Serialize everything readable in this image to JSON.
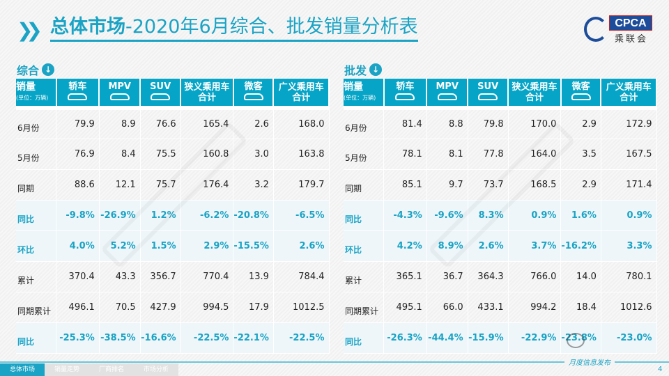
{
  "header": {
    "title_bold": "总体市场",
    "title_rest": "-2020年6月综合、批发销量分析表",
    "logo_text": "CPCA",
    "logo_cn": "乘联会"
  },
  "columns": {
    "label": "销量",
    "unit": "(单位：万辆)",
    "items": [
      "轿车",
      "MPV",
      "SUV",
      "狭义乘用车合计",
      "微客",
      "广义乘用车合计"
    ],
    "icons": [
      "car-icon",
      "mpv-icon",
      "suv-icon",
      null,
      "van-icon",
      null
    ]
  },
  "left": {
    "title": "综合",
    "rows": [
      {
        "label": "6月份",
        "values": [
          "79.9",
          "8.9",
          "76.6",
          "165.4",
          "2.6",
          "168.0"
        ],
        "pct": false
      },
      {
        "label": "5月份",
        "values": [
          "76.9",
          "8.4",
          "75.5",
          "160.8",
          "3.0",
          "163.8"
        ],
        "pct": false
      },
      {
        "label": "同期",
        "values": [
          "88.6",
          "12.1",
          "75.7",
          "176.4",
          "3.2",
          "179.7"
        ],
        "pct": false
      },
      {
        "label": "同比",
        "values": [
          "-9.8%",
          "-26.9%",
          "1.2%",
          "-6.2%",
          "-20.8%",
          "-6.5%"
        ],
        "pct": true
      },
      {
        "label": "环比",
        "values": [
          "4.0%",
          "5.2%",
          "1.5%",
          "2.9%",
          "-15.5%",
          "2.6%"
        ],
        "pct": true
      },
      {
        "label": "累计",
        "values": [
          "370.4",
          "43.3",
          "356.7",
          "770.4",
          "13.9",
          "784.4"
        ],
        "pct": false
      },
      {
        "label": "同期累计",
        "values": [
          "496.1",
          "70.5",
          "427.9",
          "994.5",
          "17.9",
          "1012.5"
        ],
        "pct": false
      },
      {
        "label": "同比",
        "values": [
          "-25.3%",
          "-38.5%",
          "-16.6%",
          "-22.5%",
          "-22.1%",
          "-22.5%"
        ],
        "pct": true
      }
    ]
  },
  "right": {
    "title": "批发",
    "rows": [
      {
        "label": "6月份",
        "values": [
          "81.4",
          "8.8",
          "79.8",
          "170.0",
          "2.9",
          "172.9"
        ],
        "pct": false
      },
      {
        "label": "5月份",
        "values": [
          "78.1",
          "8.1",
          "77.8",
          "164.0",
          "3.5",
          "167.5"
        ],
        "pct": false
      },
      {
        "label": "同期",
        "values": [
          "85.1",
          "9.7",
          "73.7",
          "168.5",
          "2.9",
          "171.4"
        ],
        "pct": false
      },
      {
        "label": "同比",
        "values": [
          "-4.3%",
          "-9.6%",
          "8.3%",
          "0.9%",
          "1.6%",
          "0.9%"
        ],
        "pct": true
      },
      {
        "label": "环比",
        "values": [
          "4.2%",
          "8.9%",
          "2.6%",
          "3.7%",
          "-16.2%",
          "3.3%"
        ],
        "pct": true
      },
      {
        "label": "累计",
        "values": [
          "365.1",
          "36.7",
          "364.3",
          "766.0",
          "14.0",
          "780.1"
        ],
        "pct": false
      },
      {
        "label": "同期累计",
        "values": [
          "495.1",
          "66.0",
          "433.1",
          "994.2",
          "18.4",
          "1012.6"
        ],
        "pct": false
      },
      {
        "label": "同比",
        "values": [
          "-26.3%",
          "-44.4%",
          "-15.9%",
          "-22.9%",
          "-23.8%",
          "-23.0%"
        ],
        "pct": true
      }
    ]
  },
  "watermark": "CPCA乘联会",
  "wechat_label": "乘联会",
  "footer": {
    "tabs": [
      "总体市场",
      "销量走势",
      "厂商排名",
      "市场分析"
    ],
    "active": 0,
    "tagline": "月度信息发布",
    "page": "4"
  },
  "colors": {
    "accent": "#1aa3c4",
    "header_bg": "#06a5c7",
    "pct_row_bg": "#eef6fa"
  }
}
